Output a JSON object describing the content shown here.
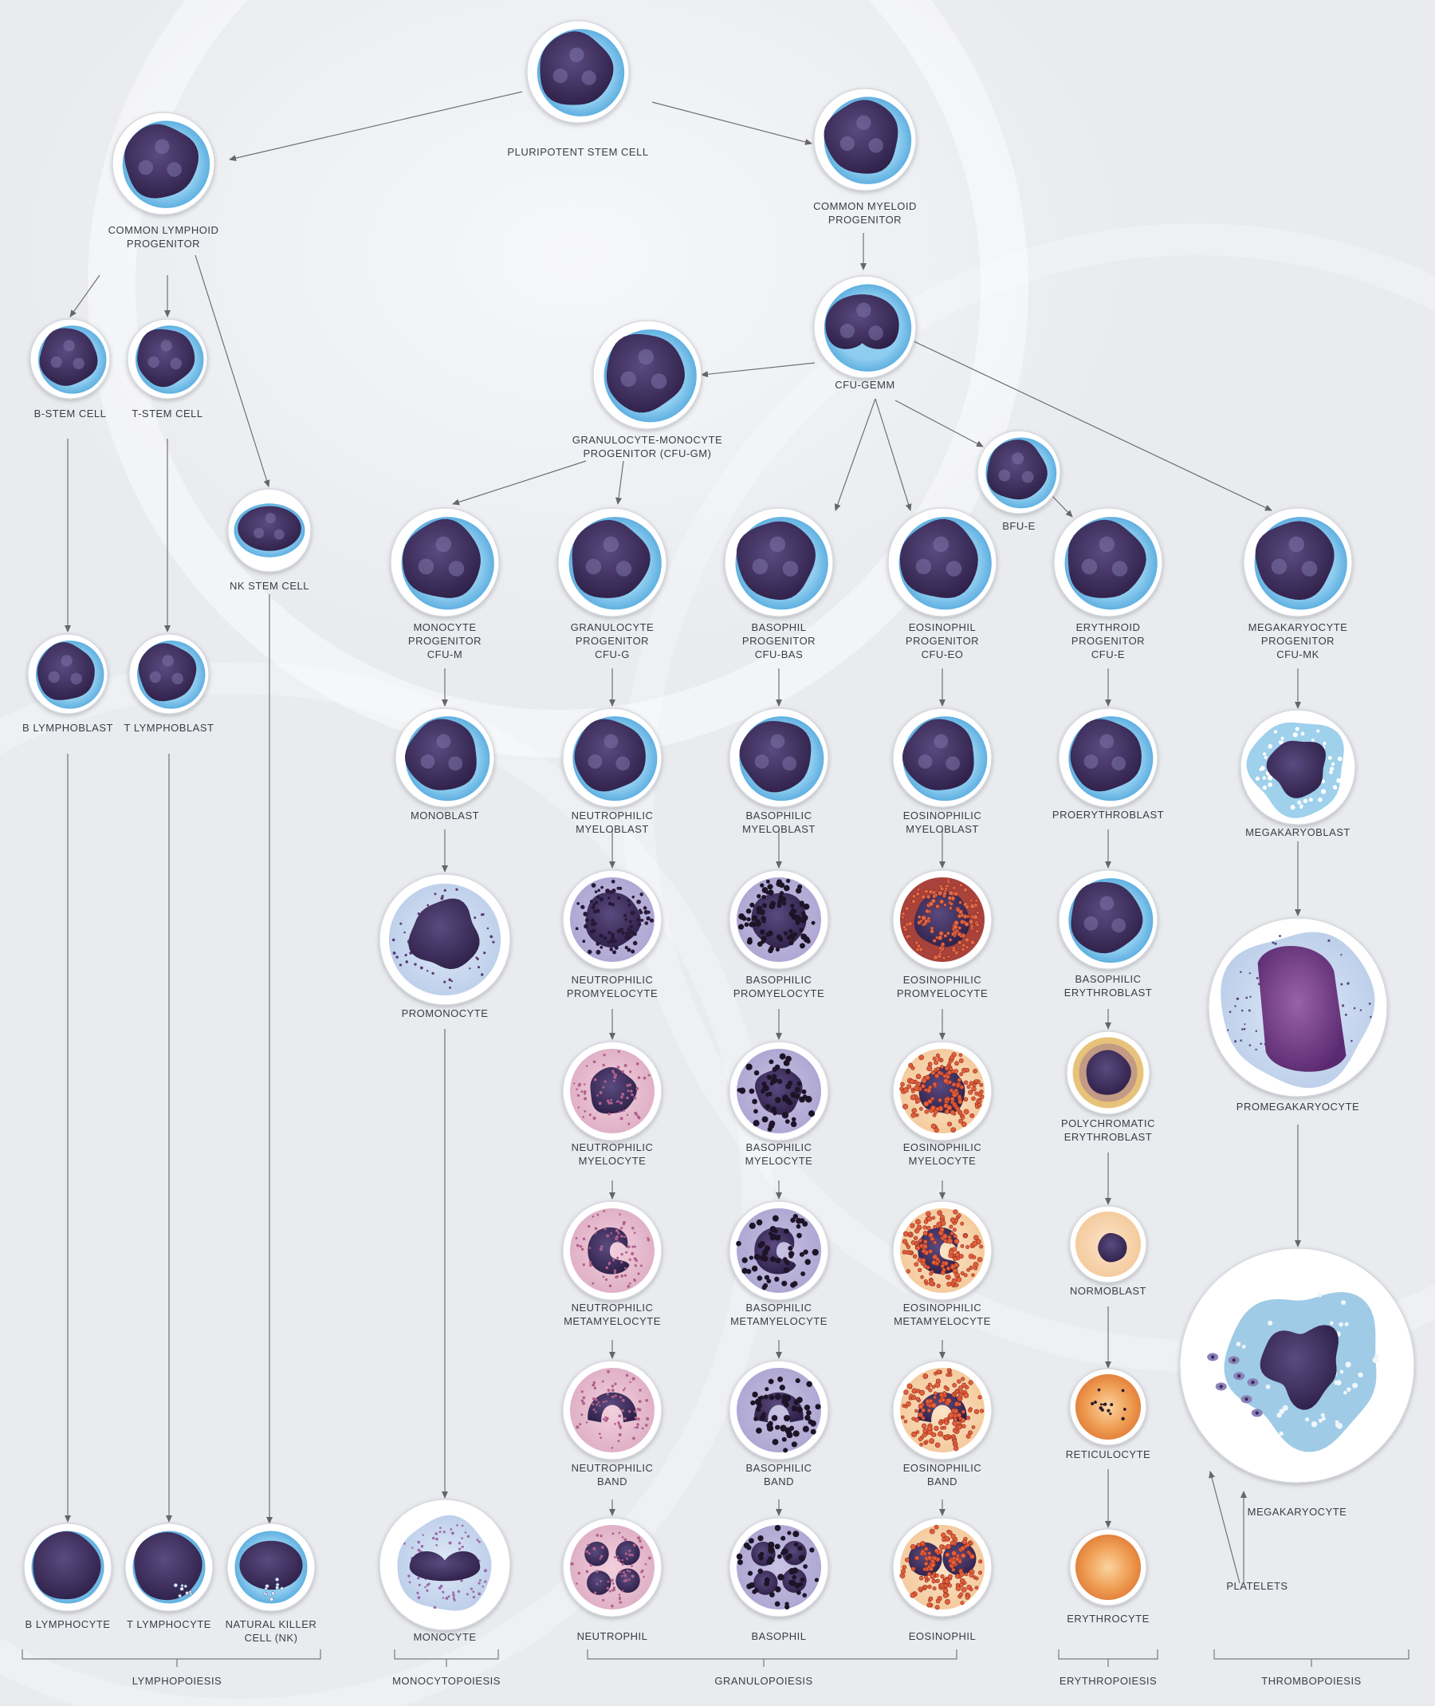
{
  "cells": [
    {
      "id": "psc",
      "lines": [
        "PLURIPOTENT STEM CELL"
      ],
      "type": "stem"
    },
    {
      "id": "clp",
      "lines": [
        "COMMON LYMPHOID",
        "PROGENITOR"
      ],
      "type": "stem"
    },
    {
      "id": "cmp",
      "lines": [
        "COMMON MYELOID",
        "PROGENITOR"
      ],
      "type": "stem"
    },
    {
      "id": "bstem",
      "lines": [
        "B-STEM CELL"
      ],
      "type": "stem"
    },
    {
      "id": "tstem",
      "lines": [
        "T-STEM CELL"
      ],
      "type": "stem"
    },
    {
      "id": "nkstem",
      "lines": [
        "NK STEM CELL"
      ],
      "type": "oval"
    },
    {
      "id": "cfugemm",
      "lines": [
        "CFU-GEMM"
      ],
      "type": "gemm"
    },
    {
      "id": "gmp",
      "lines": [
        "GRANULOCYTE-MONOCYTE",
        "PROGENITOR (CFU-GM)"
      ],
      "type": "stem"
    },
    {
      "id": "bfue",
      "lines": [
        "BFU-E"
      ],
      "type": "stem"
    },
    {
      "id": "blast_b",
      "lines": [
        "B LYMPHOBLAST"
      ],
      "type": "stem"
    },
    {
      "id": "blast_t",
      "lines": [
        "T LYMPHOBLAST"
      ],
      "type": "stem"
    },
    {
      "id": "mono_prog",
      "lines": [
        "MONOCYTE",
        "PROGENITOR",
        "CFU-M"
      ],
      "type": "stem"
    },
    {
      "id": "gran_prog",
      "lines": [
        "GRANULOCYTE",
        "PROGENITOR",
        "CFU-G"
      ],
      "type": "stem"
    },
    {
      "id": "baso_prog",
      "lines": [
        "BASOPHIL",
        "PROGENITOR",
        "CFU-Bas"
      ],
      "type": "stem"
    },
    {
      "id": "eos_prog",
      "lines": [
        "EOSINOPHIL",
        "PROGENITOR",
        "CFU-Eo"
      ],
      "type": "stem"
    },
    {
      "id": "ery_prog",
      "lines": [
        "ERYTHROID",
        "PROGENITOR",
        "CFU-E"
      ],
      "type": "stem"
    },
    {
      "id": "mk_prog",
      "lines": [
        "MEGAKARYOCYTE",
        "PROGENITOR",
        "CFU-MK"
      ],
      "type": "stem"
    },
    {
      "id": "monoblast",
      "lines": [
        "MONOBLAST"
      ],
      "type": "stem"
    },
    {
      "id": "n_myeloblast",
      "lines": [
        "NEUTROPHILIC",
        "MYELOBLAST"
      ],
      "type": "stem"
    },
    {
      "id": "b_myeloblast",
      "lines": [
        "BASOPHILIC",
        "MYELOBLAST"
      ],
      "type": "stem"
    },
    {
      "id": "e_myeloblast",
      "lines": [
        "EOSINOPHILIC",
        "MYELOBLAST"
      ],
      "type": "stem"
    },
    {
      "id": "proerythroblast",
      "lines": [
        "PROERYTHROBLAST"
      ],
      "type": "stem"
    },
    {
      "id": "megakaryoblast",
      "lines": [
        "MEGAKARYOBLAST"
      ],
      "type": "mkblast"
    },
    {
      "id": "promonocyte",
      "lines": [
        "PROMONOCYTE"
      ],
      "type": "promono"
    },
    {
      "id": "n_promyelocyte",
      "lines": [
        "NEUTROPHILIC",
        "PROMYELOCYTE"
      ],
      "type": "promyelo_n"
    },
    {
      "id": "b_promyelocyte",
      "lines": [
        "BASOPHILIC",
        "PROMYELOCYTE"
      ],
      "type": "promyelo_b"
    },
    {
      "id": "e_promyelocyte",
      "lines": [
        "EOSINOPHILIC",
        "PROMYELOCYTE"
      ],
      "type": "promyelo_e"
    },
    {
      "id": "b_erythroblast",
      "lines": [
        "BASOPHILIC",
        "ERYTHROBLAST"
      ],
      "type": "stem"
    },
    {
      "id": "promegakaryocyte",
      "lines": [
        "PROMEGAKARYOCYTE"
      ],
      "type": "promega"
    },
    {
      "id": "n_myelocyte",
      "lines": [
        "NEUTROPHILIC",
        "MYELOCYTE"
      ],
      "type": "myelo_n"
    },
    {
      "id": "b_myelocyte",
      "lines": [
        "BASOPHILIC",
        "MYELOCYTE"
      ],
      "type": "myelo_b"
    },
    {
      "id": "e_myelocyte",
      "lines": [
        "EOSINOPHILIC",
        "MYELOCYTE"
      ],
      "type": "myelo_e"
    },
    {
      "id": "poly_erythroblast",
      "lines": [
        "POLYCHROMATIC",
        "ERYTHROBLAST"
      ],
      "type": "poly"
    },
    {
      "id": "n_metamyelocyte",
      "lines": [
        "NEUTROPHILIC",
        "METAMYELOCYTE"
      ],
      "type": "meta_n"
    },
    {
      "id": "b_metamyelocyte",
      "lines": [
        "BASOPHILIC",
        "METAMYELOCYTE"
      ],
      "type": "meta_b"
    },
    {
      "id": "e_metamyelocyte",
      "lines": [
        "EOSINOPHILIC",
        "METAMYELOCYTE"
      ],
      "type": "meta_e"
    },
    {
      "id": "normoblast",
      "lines": [
        "NORMOBLAST"
      ],
      "type": "normo"
    },
    {
      "id": "megakaryocyte",
      "lines": [
        "MEGAKARYOCYTE"
      ],
      "type": "mega"
    },
    {
      "id": "n_band",
      "lines": [
        "NEUTROPHILIC",
        "BAND"
      ],
      "type": "band_n"
    },
    {
      "id": "b_band",
      "lines": [
        "BASOPHILIC",
        "BAND"
      ],
      "type": "band_b"
    },
    {
      "id": "e_band",
      "lines": [
        "EOSINOPHILIC",
        "BAND"
      ],
      "type": "band_e"
    },
    {
      "id": "reticulocyte",
      "lines": [
        "RETICULOCYTE"
      ],
      "type": "retic"
    },
    {
      "id": "platelets",
      "lines": [
        "PLATELETS"
      ],
      "type": "none"
    },
    {
      "id": "b_lymphocyte",
      "lines": [
        "B LYMPHOCYTE"
      ],
      "type": "lymph_b"
    },
    {
      "id": "t_lymphocyte",
      "lines": [
        "T LYMPHOCYTE"
      ],
      "type": "lymph_t"
    },
    {
      "id": "nk_cell",
      "lines": [
        "NATURAL KILLER",
        "CELL (NK)"
      ],
      "type": "lymph_nk"
    },
    {
      "id": "monocyte",
      "lines": [
        "MONOCYTE"
      ],
      "type": "monocyte"
    },
    {
      "id": "neutrophil",
      "lines": [
        "NEUTROPHIL"
      ],
      "type": "seg_n"
    },
    {
      "id": "basophil",
      "lines": [
        "BASOPHIL"
      ],
      "type": "seg_b"
    },
    {
      "id": "eosinophil",
      "lines": [
        "EOSINOPHIL"
      ],
      "type": "seg_e"
    },
    {
      "id": "erythrocyte",
      "lines": [
        "ERYTHROCYTE"
      ],
      "type": "rbc"
    }
  ],
  "groups": [
    {
      "id": "lymphopoiesis",
      "label": "LYMPHOPOIESIS"
    },
    {
      "id": "monocytopoiesis",
      "label": "MONOCYTOPOIESIS"
    },
    {
      "id": "granulopoiesis",
      "label": "GRANULOPOIESIS"
    },
    {
      "id": "erythropoiesis",
      "label": "ERYTHROPOIESIS"
    },
    {
      "id": "thrombopoiesis",
      "label": "THROMBOPOIESIS"
    }
  ],
  "colors": {
    "nucleus": "#3a2a5a",
    "cytoplasm": "#5fb0e0",
    "neutro_granule": "#c08ab0",
    "baso_granule": "#2a1a3a",
    "eos_granule": "#d8503a",
    "rbc": "#e89048",
    "ring": "#ffffff",
    "arrow": "#666666"
  }
}
